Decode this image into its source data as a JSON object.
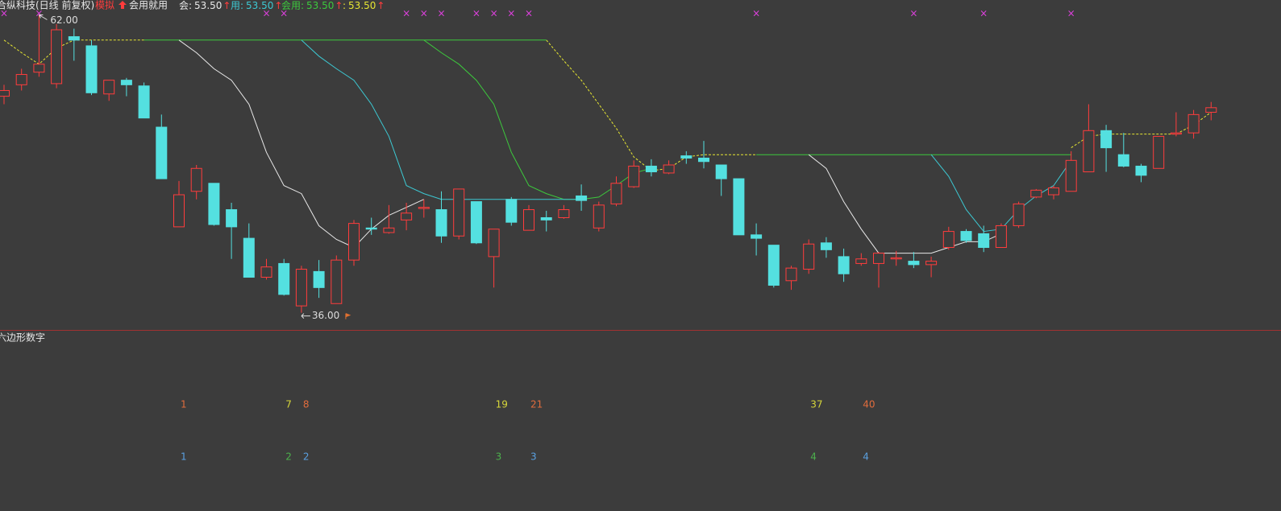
{
  "chart_data": {
    "type": "candlestick",
    "title": "合纵科技(日线 前复权)",
    "mode_label": "模拟",
    "strategy_label": "会用就用",
    "up_arrow": "↑",
    "indicators": [
      {
        "label": "会:",
        "value_text": "53.50",
        "color": "#e8e8e8"
      },
      {
        "label": "用:",
        "value_text": "53.50",
        "color": "#3cc8d2"
      },
      {
        "label": "会用:",
        "value_text": "53.50",
        "color": "#3cc83c"
      },
      {
        "label": ":",
        "value_text": "53.50",
        "color": "#e6e632"
      }
    ],
    "up_color": "#ff3c3c",
    "down_color": "#54e0e0",
    "ylim": [
      34.5,
      63.3
    ],
    "ohlc": [
      [
        54.9,
        55.9,
        54.2,
        55.4
      ],
      [
        55.9,
        57.3,
        55.4,
        56.8
      ],
      [
        57.0,
        62.0,
        56.6,
        57.7
      ],
      [
        56.0,
        61.2,
        55.6,
        60.7
      ],
      [
        60.1,
        60.8,
        58.0,
        59.8
      ],
      [
        59.3,
        59.8,
        55.0,
        55.2
      ],
      [
        55.1,
        56.3,
        54.5,
        56.3
      ],
      [
        56.3,
        56.5,
        54.9,
        55.9
      ],
      [
        55.8,
        56.1,
        53.0,
        53.0
      ],
      [
        52.2,
        53.3,
        47.7,
        47.7
      ],
      [
        43.5,
        47.5,
        43.5,
        46.3
      ],
      [
        46.6,
        48.9,
        45.9,
        48.6
      ],
      [
        47.3,
        47.3,
        43.6,
        43.7
      ],
      [
        45.0,
        45.6,
        40.7,
        43.5
      ],
      [
        42.5,
        43.8,
        39.1,
        39.1
      ],
      [
        39.1,
        40.7,
        38.9,
        40.0
      ],
      [
        40.3,
        40.7,
        37.5,
        37.6
      ],
      [
        36.6,
        40.1,
        36.0,
        39.8
      ],
      [
        39.6,
        40.6,
        37.3,
        38.2
      ],
      [
        36.8,
        41.0,
        36.8,
        40.6
      ],
      [
        40.6,
        44.1,
        40.1,
        43.8
      ],
      [
        43.4,
        44.3,
        42.8,
        43.3
      ],
      [
        43.0,
        45.4,
        42.9,
        43.4
      ],
      [
        44.1,
        45.6,
        43.2,
        44.7
      ],
      [
        45.1,
        45.9,
        44.3,
        45.2
      ],
      [
        45.0,
        46.6,
        42.1,
        42.7
      ],
      [
        42.7,
        46.8,
        42.4,
        46.8
      ],
      [
        45.7,
        45.7,
        42.0,
        42.1
      ],
      [
        40.9,
        43.3,
        38.2,
        43.3
      ],
      [
        45.9,
        46.1,
        43.6,
        43.9
      ],
      [
        43.2,
        45.4,
        43.2,
        45.0
      ],
      [
        44.3,
        44.9,
        43.1,
        44.1
      ],
      [
        44.3,
        45.4,
        44.2,
        45.0
      ],
      [
        46.2,
        47.2,
        44.9,
        45.8
      ],
      [
        43.4,
        45.7,
        43.1,
        45.4
      ],
      [
        45.5,
        47.9,
        45.3,
        47.3
      ],
      [
        47.0,
        49.3,
        46.9,
        48.8
      ],
      [
        48.8,
        49.4,
        47.9,
        48.3
      ],
      [
        48.2,
        49.3,
        48.1,
        48.9
      ],
      [
        49.7,
        50.1,
        49.0,
        49.5
      ],
      [
        49.5,
        51.0,
        48.6,
        49.2
      ],
      [
        48.9,
        48.9,
        46.2,
        47.7
      ],
      [
        47.7,
        47.7,
        42.8,
        42.8
      ],
      [
        42.8,
        43.8,
        41.0,
        42.5
      ],
      [
        41.9,
        41.9,
        38.2,
        38.4
      ],
      [
        38.8,
        40.1,
        38.0,
        39.9
      ],
      [
        39.8,
        42.4,
        39.4,
        42.0
      ],
      [
        42.1,
        42.6,
        40.8,
        41.5
      ],
      [
        40.9,
        41.6,
        38.7,
        39.4
      ],
      [
        40.3,
        41.2,
        40.1,
        40.7
      ],
      [
        40.3,
        41.3,
        38.2,
        41.2
      ],
      [
        40.7,
        41.4,
        40.1,
        40.8
      ],
      [
        40.5,
        41.3,
        39.9,
        40.2
      ],
      [
        40.2,
        40.9,
        39.1,
        40.5
      ],
      [
        41.7,
        43.5,
        41.5,
        43.1
      ],
      [
        43.1,
        43.3,
        42.1,
        42.3
      ],
      [
        42.9,
        43.6,
        41.3,
        41.7
      ],
      [
        41.7,
        43.8,
        41.7,
        43.6
      ],
      [
        43.6,
        45.7,
        43.4,
        45.5
      ],
      [
        46.1,
        46.8,
        46.0,
        46.7
      ],
      [
        46.3,
        47.1,
        45.9,
        46.9
      ],
      [
        46.6,
        50.1,
        46.6,
        49.3
      ],
      [
        48.3,
        54.2,
        48.3,
        51.9
      ],
      [
        51.9,
        52.4,
        48.3,
        50.4
      ],
      [
        49.8,
        51.7,
        48.7,
        48.8
      ],
      [
        48.8,
        49.0,
        47.4,
        48.0
      ],
      [
        48.6,
        51.4,
        48.6,
        51.4
      ],
      [
        51.6,
        53.5,
        51.4,
        51.7
      ],
      [
        51.7,
        53.7,
        51.2,
        53.3
      ],
      [
        53.5,
        54.4,
        52.8,
        53.9
      ]
    ],
    "lines": [
      {
        "color": "#e6e632",
        "dashed": true,
        "values": [
          59.8,
          58.7,
          57.7,
          59.1,
          59.8,
          59.8,
          59.8,
          59.8,
          59.8,
          null,
          null,
          null,
          null,
          null,
          null,
          null,
          null,
          null,
          null,
          null,
          null,
          null,
          null,
          null,
          null,
          null,
          null,
          null,
          null,
          null,
          null,
          59.8,
          58.0,
          56.3,
          54.2,
          52.1,
          49.6,
          48.4,
          48.6,
          49.6,
          49.8,
          49.8,
          49.8,
          49.8,
          null,
          null,
          null,
          null,
          null,
          null,
          null,
          null,
          null,
          null,
          null,
          null,
          null,
          null,
          null,
          null,
          null,
          50.4,
          51.4,
          51.6,
          51.6,
          51.6,
          51.6,
          51.6,
          52.4,
          53.5
        ]
      },
      {
        "color": "#3cc83c",
        "dashed": false,
        "values": [
          null,
          null,
          null,
          null,
          null,
          null,
          null,
          null,
          59.8,
          59.8,
          59.8,
          59.8,
          59.8,
          59.8,
          59.8,
          59.8,
          59.8,
          59.8,
          59.8,
          59.8,
          59.8,
          59.8,
          59.8,
          59.8,
          59.8,
          59.8,
          59.8,
          59.8,
          59.8,
          59.8,
          59.8,
          59.8,
          null,
          null,
          null,
          null,
          null,
          null,
          null,
          null,
          null,
          null,
          null,
          49.8,
          49.8,
          49.8,
          49.8,
          49.8,
          49.8,
          49.8,
          49.8,
          49.8,
          49.8,
          49.8,
          49.8,
          49.8,
          49.8,
          49.8,
          49.8,
          49.8,
          49.8,
          49.8,
          null,
          null,
          null,
          null,
          null,
          null,
          null,
          null
        ]
      },
      {
        "color": "#3cc83c",
        "dashed": false,
        "values": [
          null,
          null,
          null,
          null,
          null,
          null,
          null,
          null,
          null,
          null,
          null,
          null,
          null,
          null,
          null,
          null,
          null,
          null,
          null,
          null,
          null,
          null,
          null,
          null,
          59.8,
          58.7,
          57.7,
          56.3,
          54.2,
          50.0,
          47.1,
          46.4,
          45.9,
          45.9,
          46.1,
          47.1,
          48.2,
          48.6,
          null,
          null,
          null,
          null,
          null,
          null,
          null,
          null,
          null,
          null,
          null,
          null,
          null,
          null,
          null,
          null,
          null,
          null,
          null,
          null,
          null,
          null,
          null,
          null,
          null,
          null,
          null,
          null,
          null,
          null,
          null,
          null
        ]
      },
      {
        "color": "#e8e8e8",
        "dashed": false,
        "values": [
          null,
          null,
          null,
          null,
          null,
          null,
          null,
          null,
          null,
          null,
          59.8,
          58.7,
          57.3,
          56.3,
          54.2,
          50.0,
          47.1,
          46.4,
          43.6,
          42.4,
          41.7,
          43.3,
          44.5,
          45.2,
          45.9,
          null,
          null,
          null,
          null,
          null,
          null,
          null,
          null,
          null,
          null,
          null,
          null,
          null,
          null,
          null,
          null,
          null,
          null,
          null,
          null,
          null,
          49.8,
          48.6,
          45.7,
          43.3,
          41.2,
          41.2,
          41.2,
          41.2,
          41.7,
          42.2,
          42.2,
          42.9,
          null,
          null,
          null,
          null,
          null,
          null,
          null,
          null,
          null,
          null,
          null,
          null
        ]
      },
      {
        "color": "#3cc8d2",
        "dashed": false,
        "values": [
          null,
          null,
          null,
          null,
          null,
          null,
          null,
          null,
          null,
          null,
          null,
          null,
          null,
          null,
          null,
          null,
          null,
          59.8,
          58.4,
          57.3,
          56.3,
          54.2,
          51.4,
          47.1,
          46.4,
          45.9,
          45.9,
          45.9,
          45.9,
          45.9,
          45.9,
          45.9,
          45.9,
          45.9,
          null,
          null,
          null,
          null,
          null,
          null,
          null,
          null,
          null,
          null,
          null,
          null,
          null,
          null,
          null,
          null,
          null,
          null,
          null,
          49.8,
          47.9,
          45.0,
          43.1,
          43.3,
          45.0,
          46.2,
          47.1,
          49.3,
          null,
          null,
          null,
          null,
          null,
          null,
          null,
          null
        ]
      }
    ],
    "max_label": {
      "value": 62.0,
      "label": "62.00"
    },
    "min_label": {
      "value": 36.0,
      "label": "36.00"
    },
    "signal_symbol": "×",
    "signal_color": "#e040e0",
    "signals": [
      true,
      false,
      true,
      false,
      false,
      false,
      false,
      false,
      false,
      false,
      false,
      false,
      false,
      false,
      false,
      true,
      true,
      false,
      false,
      false,
      false,
      false,
      false,
      true,
      true,
      true,
      false,
      true,
      true,
      true,
      true,
      false,
      false,
      false,
      false,
      false,
      false,
      false,
      false,
      false,
      false,
      false,
      false,
      true,
      false,
      false,
      false,
      false,
      false,
      false,
      false,
      false,
      true,
      false,
      false,
      false,
      true,
      false,
      false,
      false,
      false,
      true,
      false,
      false,
      false,
      false,
      false,
      false,
      false,
      false
    ],
    "panel2": {
      "title": "六边形数字",
      "rows": [
        {
          "color": "#e06c3c",
          "row": "upper",
          "values": [
            null,
            null,
            null,
            null,
            null,
            null,
            null,
            null,
            null,
            null,
            1,
            null,
            null,
            null,
            null,
            null,
            null,
            8,
            null,
            null,
            null,
            null,
            null,
            null,
            null,
            null,
            null,
            null,
            null,
            null,
            21,
            null,
            null,
            null,
            null,
            null,
            null,
            null,
            null,
            null,
            null,
            null,
            null,
            null,
            null,
            null,
            null,
            null,
            null,
            40,
            null,
            null,
            null,
            null,
            null,
            null,
            null,
            null,
            null,
            null,
            null,
            null,
            null,
            null,
            null,
            null,
            null,
            null,
            null,
            null
          ]
        },
        {
          "color": "#d6d63a",
          "row": "upper",
          "values": [
            null,
            null,
            null,
            null,
            null,
            null,
            null,
            null,
            null,
            null,
            null,
            null,
            null,
            null,
            null,
            null,
            7,
            null,
            null,
            null,
            null,
            null,
            null,
            null,
            null,
            null,
            null,
            null,
            19,
            null,
            null,
            null,
            null,
            null,
            null,
            null,
            null,
            null,
            null,
            null,
            null,
            null,
            null,
            null,
            null,
            null,
            37,
            null,
            null,
            null,
            null,
            null,
            null,
            null,
            null,
            null,
            null,
            null,
            null,
            null,
            null,
            null,
            null,
            null,
            null,
            null,
            null,
            null,
            null,
            null
          ]
        },
        {
          "color": "#5aa0e0",
          "row": "lower",
          "values": [
            null,
            null,
            null,
            null,
            null,
            null,
            null,
            null,
            null,
            null,
            1,
            null,
            null,
            null,
            null,
            null,
            null,
            2,
            null,
            null,
            null,
            null,
            null,
            null,
            null,
            null,
            null,
            null,
            null,
            null,
            3,
            null,
            null,
            null,
            null,
            null,
            null,
            null,
            null,
            null,
            null,
            null,
            null,
            null,
            null,
            null,
            null,
            null,
            null,
            4,
            null,
            null,
            null,
            null,
            null,
            null,
            null,
            null,
            null,
            null,
            null,
            null,
            null,
            null,
            null,
            null,
            null,
            null,
            null,
            null
          ]
        },
        {
          "color": "#4cb04c",
          "row": "lower",
          "values": [
            null,
            null,
            null,
            null,
            null,
            null,
            null,
            null,
            null,
            null,
            null,
            null,
            null,
            null,
            null,
            null,
            2,
            null,
            null,
            null,
            null,
            null,
            null,
            null,
            null,
            null,
            null,
            null,
            3,
            null,
            null,
            null,
            null,
            null,
            null,
            null,
            null,
            null,
            null,
            null,
            null,
            null,
            null,
            null,
            null,
            null,
            4,
            null,
            null,
            null,
            null,
            null,
            null,
            null,
            null,
            null,
            null,
            null,
            null,
            null,
            null,
            null,
            null,
            null,
            null,
            null,
            null,
            null,
            null,
            null
          ]
        }
      ]
    }
  }
}
